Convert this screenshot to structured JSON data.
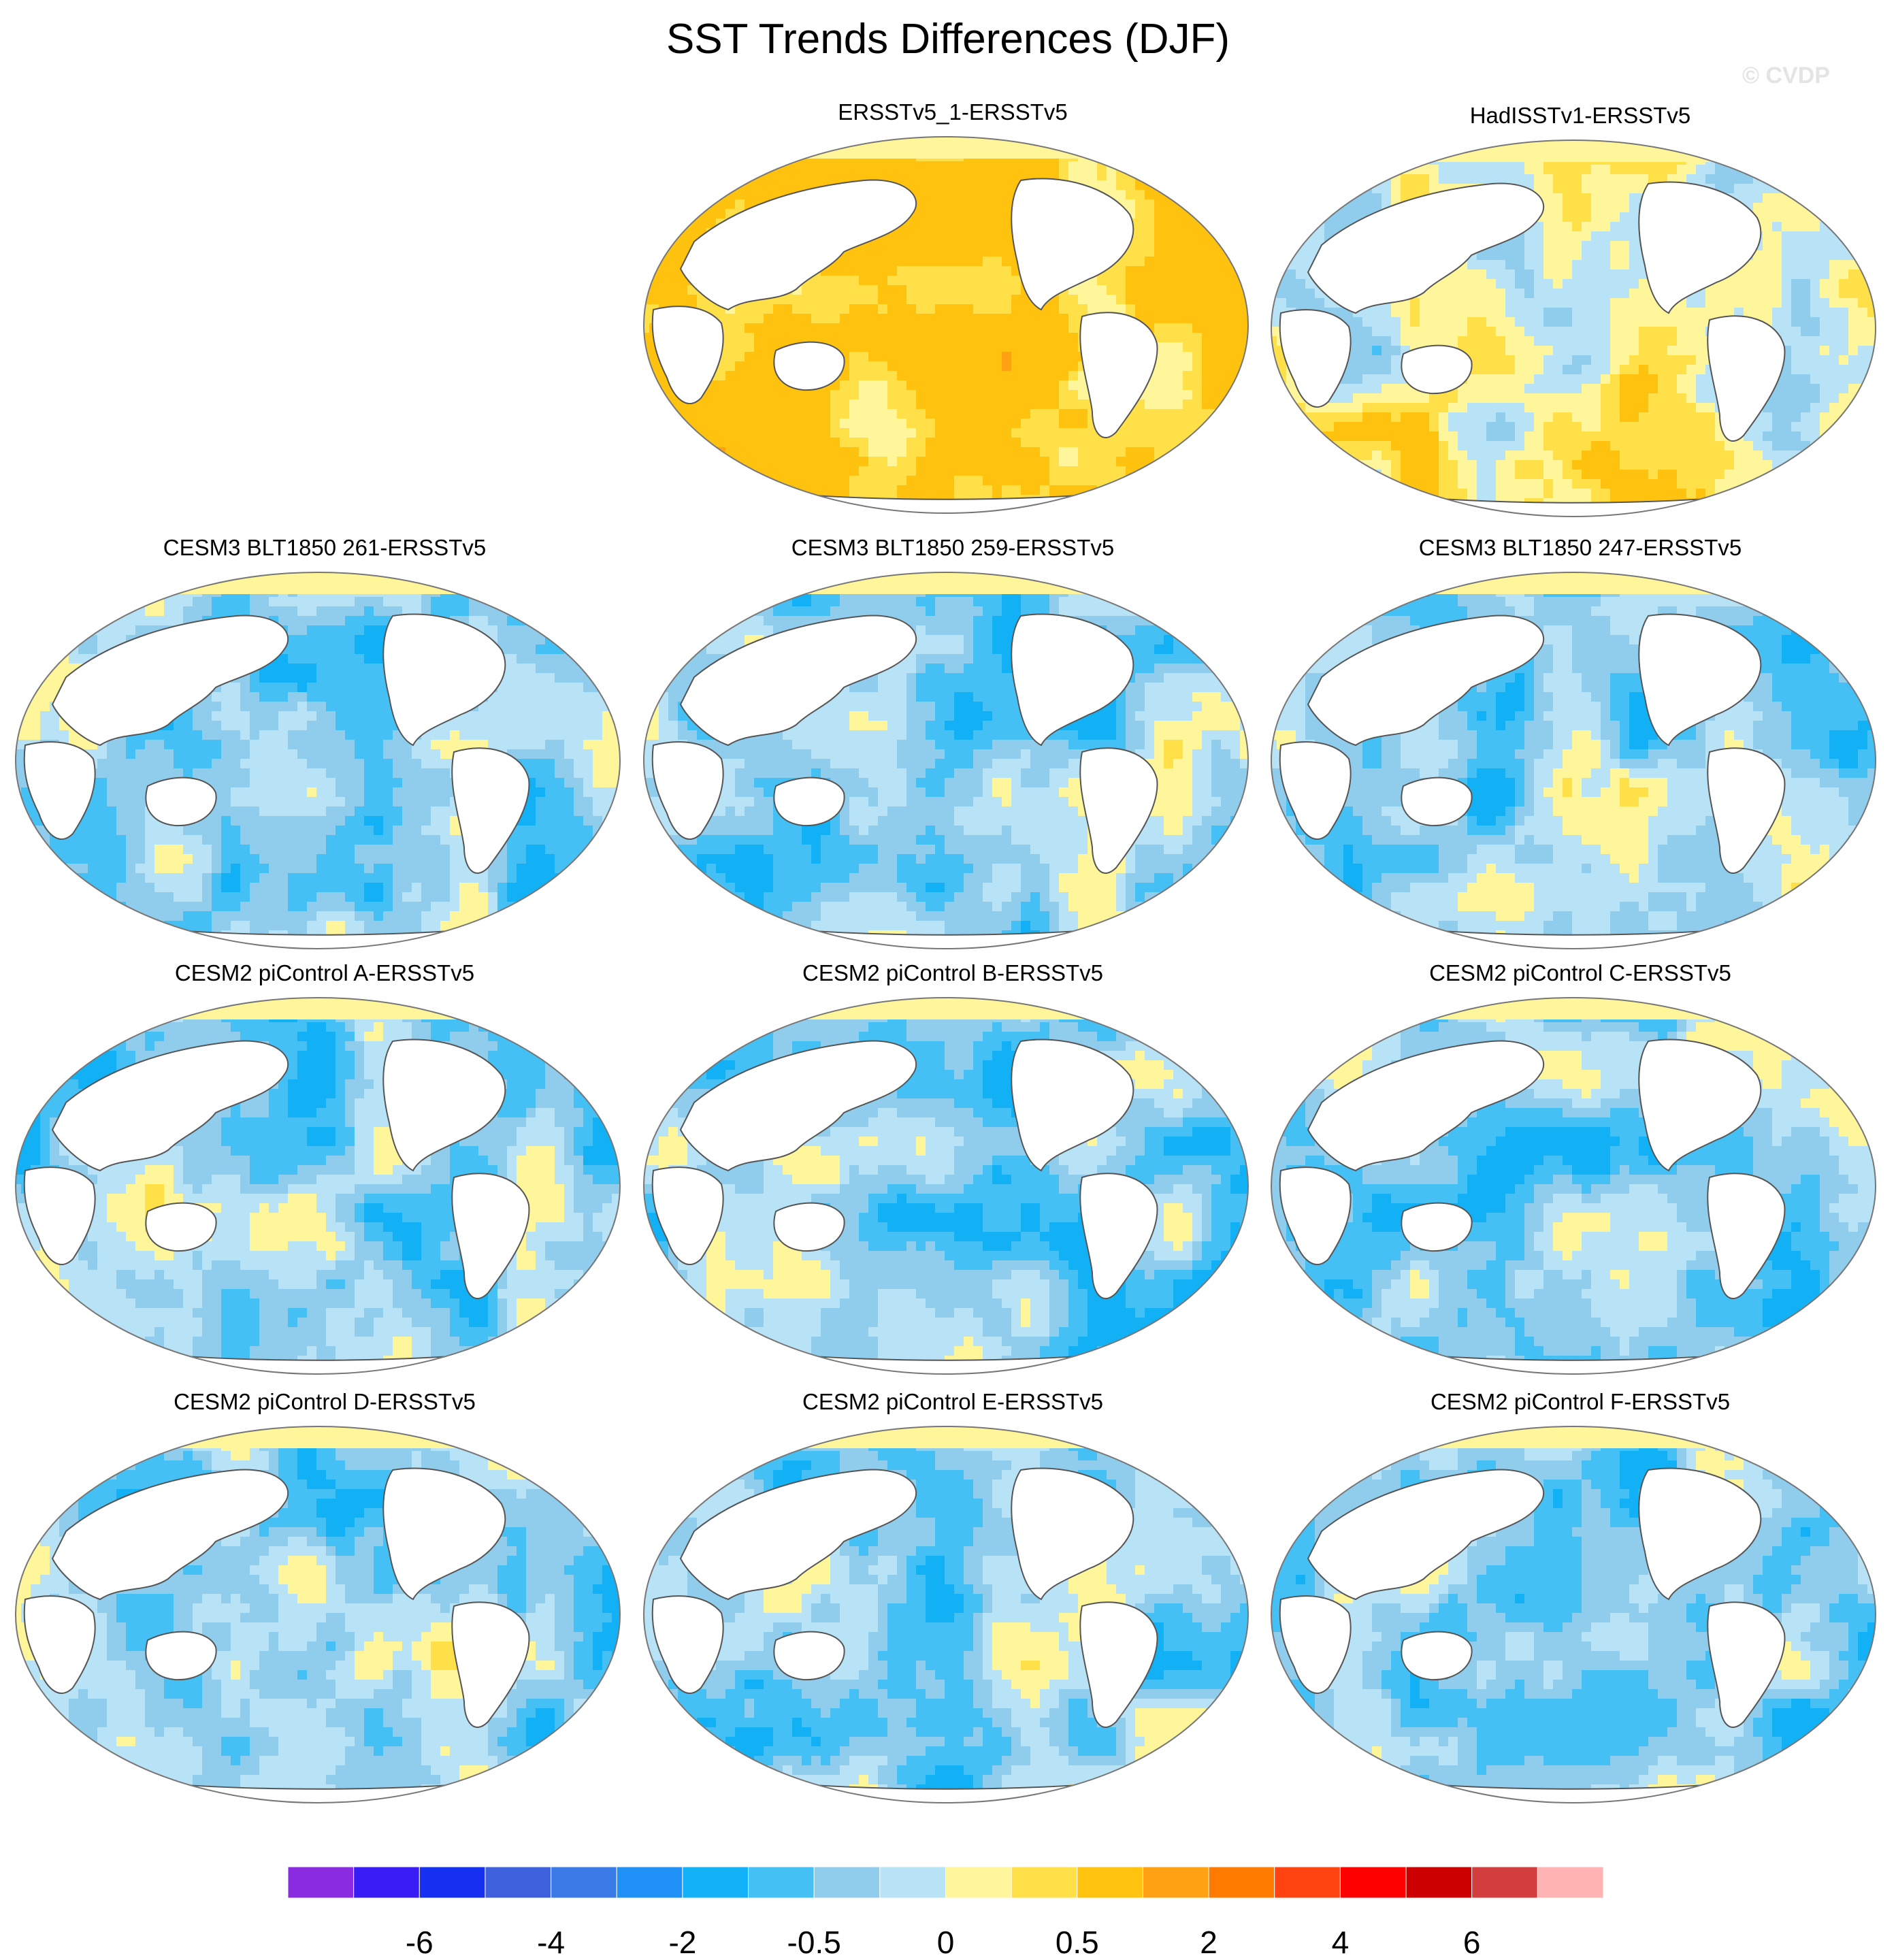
{
  "title": "SST Trends Differences (DJF)",
  "watermark": "© CVDP",
  "panels": [
    {
      "label": "ERSSTv5_1-ERSSTv5",
      "scheme": "warm"
    },
    {
      "label": "HadISSTv1-ERSSTv5",
      "scheme": "mixed_warm"
    },
    {
      "label": "CESM3 BLT1850 261-ERSSTv5",
      "scheme": "cool"
    },
    {
      "label": "CESM3 BLT1850 259-ERSSTv5",
      "scheme": "cool"
    },
    {
      "label": "CESM3 BLT1850 247-ERSSTv5",
      "scheme": "cool"
    },
    {
      "label": "CESM2 piControl A-ERSSTv5",
      "scheme": "cool"
    },
    {
      "label": "CESM2 piControl B-ERSSTv5",
      "scheme": "cool"
    },
    {
      "label": "CESM2 piControl C-ERSSTv5",
      "scheme": "cool"
    },
    {
      "label": "CESM2 piControl D-ERSSTv5",
      "scheme": "cool"
    },
    {
      "label": "CESM2 piControl E-ERSSTv5",
      "scheme": "cool"
    },
    {
      "label": "CESM2 piControl F-ERSSTv5",
      "scheme": "cool"
    }
  ],
  "colorbar": {
    "colors": [
      "#8a2be2",
      "#3a1cf5",
      "#1530f0",
      "#3f60dc",
      "#3a7ae6",
      "#1f90f5",
      "#12b0f5",
      "#45c0f5",
      "#90ccec",
      "#b8e2f6",
      "#fff59a",
      "#ffe048",
      "#ffc20e",
      "#ffa112",
      "#ff7b00",
      "#ff4412",
      "#ff0000",
      "#cc0000",
      "#d43d3d",
      "#ffb3b3"
    ],
    "labels": [
      "-6",
      "-4",
      "-2",
      "-0.5",
      "0",
      "0.5",
      "2",
      "4",
      "6"
    ]
  },
  "colors": {
    "land": "#ffffff",
    "outline": "#555555",
    "sea_ice": "#fff59a"
  }
}
